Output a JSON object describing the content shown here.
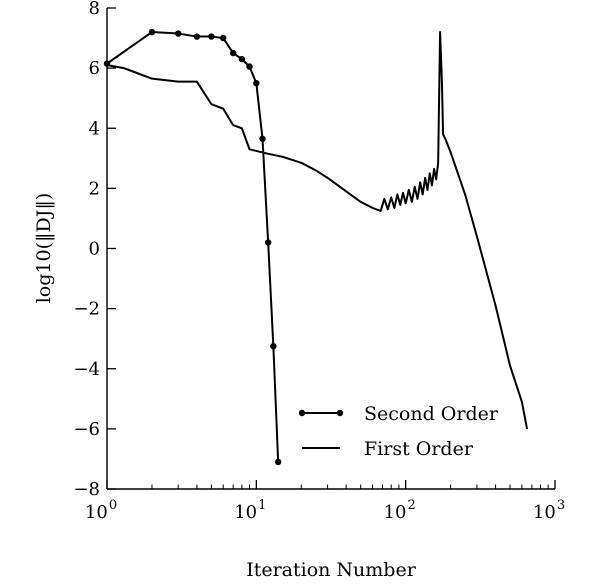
{
  "chart_data": {
    "type": "line",
    "xlabel": "Iteration Number",
    "ylabel": "log10(‖DJ‖)",
    "xscale": "log",
    "xlim": [
      1,
      1000
    ],
    "ylim": [
      -8,
      8
    ],
    "x_ticks": [
      {
        "value": 1,
        "base": "10",
        "exp": "0"
      },
      {
        "value": 10,
        "base": "10",
        "exp": "1"
      },
      {
        "value": 100,
        "base": "10",
        "exp": "2"
      },
      {
        "value": 1000,
        "base": "10",
        "exp": "3"
      }
    ],
    "y_ticks": [
      {
        "value": -8,
        "label": "−8"
      },
      {
        "value": -6,
        "label": "−6"
      },
      {
        "value": -4,
        "label": "−4"
      },
      {
        "value": -2,
        "label": "−2"
      },
      {
        "value": 0,
        "label": "0"
      },
      {
        "value": 2,
        "label": "2"
      },
      {
        "value": 4,
        "label": "4"
      },
      {
        "value": 6,
        "label": "6"
      },
      {
        "value": 8,
        "label": "8"
      }
    ],
    "grid": false,
    "legend_position": "lower-center",
    "series": [
      {
        "name": "Second Order",
        "marker": "dot",
        "color": "#000000",
        "x": [
          1,
          2,
          3,
          4,
          5,
          6,
          7,
          8,
          9,
          10,
          11,
          12,
          13,
          14
        ],
        "y": [
          6.15,
          7.2,
          7.15,
          7.05,
          7.05,
          7.0,
          6.5,
          6.3,
          6.05,
          5.5,
          3.65,
          0.2,
          -3.25,
          -7.1
        ]
      },
      {
        "name": "First Order",
        "marker": "none",
        "color": "#000000",
        "x": [
          1,
          1.3,
          2,
          3,
          4,
          5,
          6,
          7,
          8,
          9,
          12,
          15,
          20,
          25,
          30,
          40,
          50,
          60,
          68,
          72,
          76,
          80,
          84,
          88,
          92,
          96,
          100,
          105,
          110,
          115,
          120,
          125,
          130,
          135,
          140,
          145,
          150,
          155,
          160,
          165,
          170,
          175,
          178,
          182,
          186,
          200,
          250,
          300,
          400,
          500,
          600,
          650
        ],
        "y": [
          6.1,
          6.0,
          5.65,
          5.55,
          5.55,
          4.8,
          4.65,
          4.1,
          4.0,
          3.3,
          3.15,
          3.05,
          2.85,
          2.6,
          2.35,
          1.9,
          1.55,
          1.35,
          1.25,
          1.65,
          1.3,
          1.7,
          1.35,
          1.8,
          1.45,
          1.85,
          1.5,
          1.95,
          1.55,
          2.05,
          1.65,
          2.2,
          1.8,
          2.35,
          1.95,
          2.5,
          2.1,
          2.65,
          2.3,
          2.85,
          7.2,
          5.5,
          3.8,
          3.7,
          3.6,
          3.2,
          1.8,
          0.4,
          -1.9,
          -3.9,
          -5.1,
          -6.0
        ]
      }
    ]
  }
}
